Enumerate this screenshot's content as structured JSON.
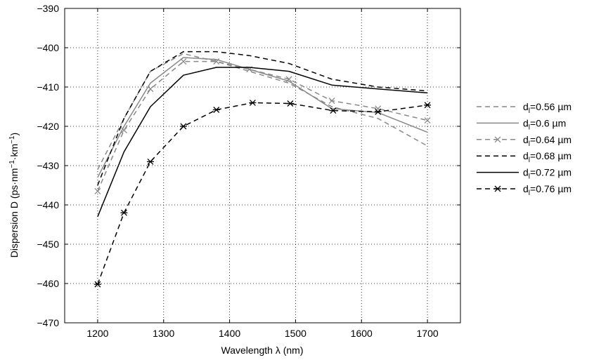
{
  "chart_data": {
    "type": "line",
    "xlabel": "Wavelength λ (nm)",
    "ylabel_main": "Dispersion D (ps·nm",
    "ylabel_sup1": "−1",
    "ylabel_mid": "·km",
    "ylabel_sup2": "−1",
    "ylabel_end": ")",
    "xlim": [
      1150,
      1750
    ],
    "ylim": [
      -470,
      -390
    ],
    "xticks": [
      1200,
      1300,
      1400,
      1500,
      1600,
      1700
    ],
    "yticks": [
      -470,
      -460,
      -450,
      -440,
      -430,
      -420,
      -410,
      -400,
      -390
    ],
    "xtick_labels": [
      "1200",
      "1300",
      "1400",
      "1500",
      "1600",
      "1700"
    ],
    "ytick_labels": [
      "−470",
      "−460",
      "−450",
      "−440",
      "−430",
      "−420",
      "−410",
      "−400",
      "−390"
    ],
    "grid": true,
    "legend_position": "right",
    "series": [
      {
        "legend_prefix": "d",
        "legend_sub": "l",
        "legend_value": "=0.56 µm",
        "color": "#888888",
        "dash": "dashed",
        "marker": "none",
        "x": [
          1200,
          1240,
          1280,
          1330,
          1380,
          1430,
          1490,
          1555,
          1625,
          1700
        ],
        "y": [
          -431,
          -418,
          -406,
          -401.5,
          -403.5,
          -406,
          -409,
          -415,
          -418,
          -425
        ]
      },
      {
        "legend_prefix": "d",
        "legend_sub": "l",
        "legend_value": "=0.6 µm",
        "color": "#888888",
        "dash": "solid",
        "marker": "none",
        "x": [
          1200,
          1240,
          1280,
          1330,
          1380,
          1430,
          1490,
          1555,
          1625,
          1700
        ],
        "y": [
          -433,
          -420,
          -409,
          -402.5,
          -403,
          -405.5,
          -408.5,
          -415.5,
          -416.5,
          -421.5
        ]
      },
      {
        "legend_prefix": "d",
        "legend_sub": "l",
        "legend_value": "=0.64 µm",
        "color": "#888888",
        "dash": "dashed",
        "marker": "x",
        "x": [
          1200,
          1240,
          1280,
          1330,
          1380,
          1430,
          1490,
          1555,
          1625,
          1700
        ],
        "y": [
          -436.5,
          -421,
          -410.5,
          -403.5,
          -403.5,
          -405.5,
          -408,
          -413.5,
          -415.5,
          -418.5
        ]
      },
      {
        "legend_prefix": "d",
        "legend_sub": "l",
        "legend_value": "=0.68 µm",
        "color": "#000000",
        "dash": "dashed",
        "marker": "none",
        "x": [
          1200,
          1240,
          1280,
          1330,
          1380,
          1430,
          1490,
          1555,
          1625,
          1700
        ],
        "y": [
          -435,
          -418,
          -406,
          -401,
          -401,
          -402,
          -404,
          -408,
          -410,
          -411
        ]
      },
      {
        "legend_prefix": "d",
        "legend_sub": "l",
        "legend_value": "=0.72 µm",
        "color": "#000000",
        "dash": "solid",
        "marker": "none",
        "x": [
          1200,
          1240,
          1280,
          1330,
          1380,
          1430,
          1490,
          1555,
          1625,
          1700
        ],
        "y": [
          -443,
          -426.5,
          -415,
          -407,
          -405,
          -405,
          -406,
          -409.5,
          -410.5,
          -411.5
        ]
      },
      {
        "legend_prefix": "d",
        "legend_sub": "l",
        "legend_value": "=0.76 µm",
        "color": "#000000",
        "dash": "dashed",
        "marker": "star",
        "x": [
          1200,
          1240,
          1280,
          1330,
          1380,
          1435,
          1492,
          1557,
          1625,
          1700
        ],
        "y": [
          -460.2,
          -442,
          -429,
          -420,
          -415.8,
          -414,
          -414.2,
          -416,
          -416.3,
          -414.6
        ]
      }
    ]
  }
}
